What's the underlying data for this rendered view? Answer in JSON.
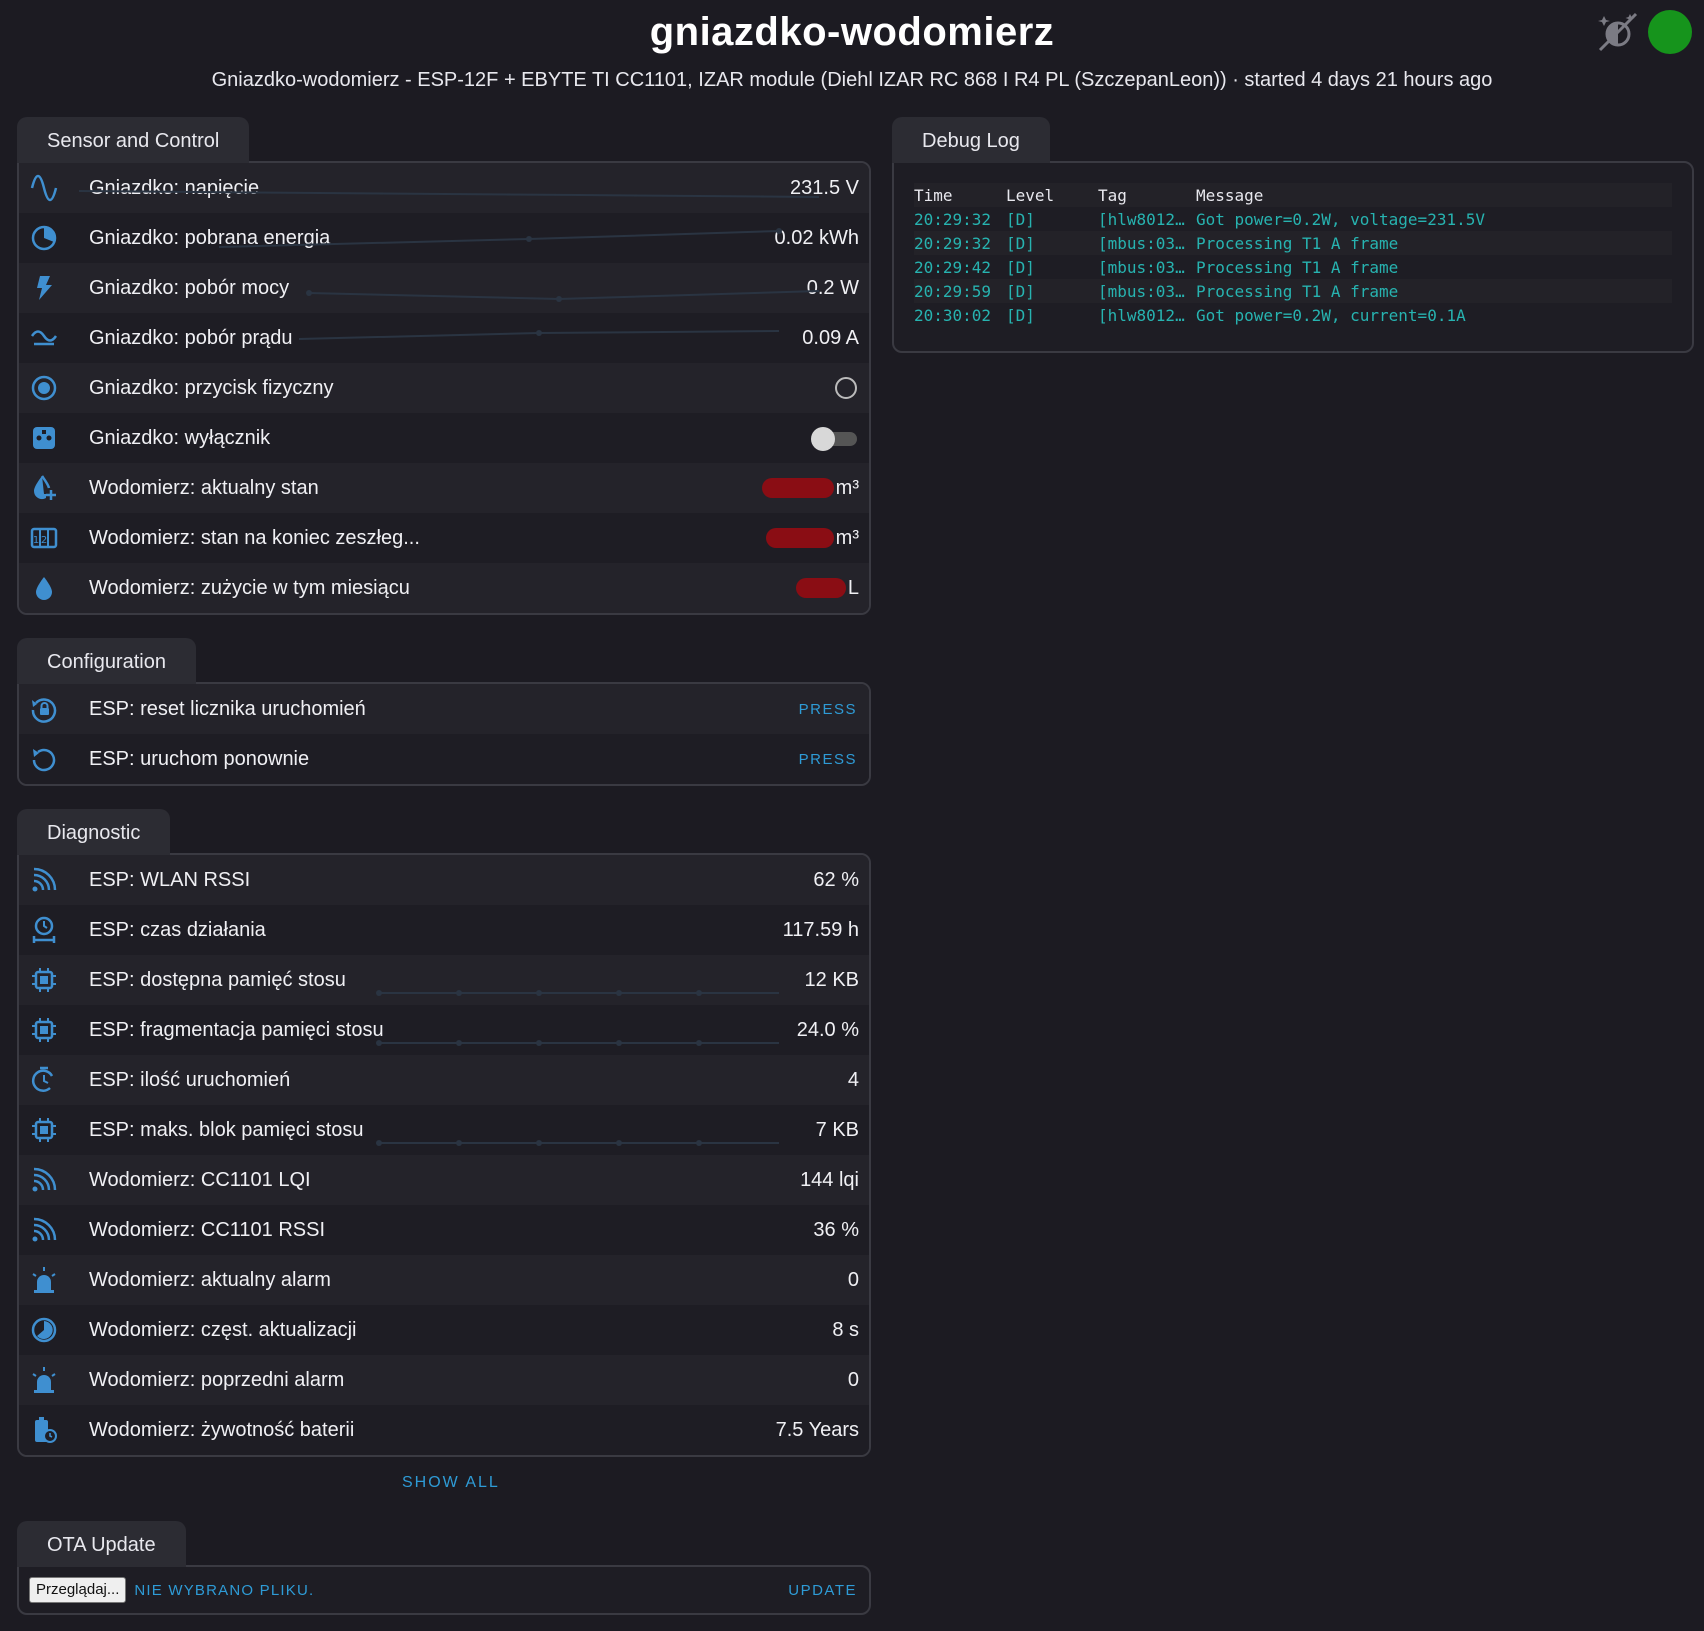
{
  "header": {
    "title": "gniazdko-wodomierz",
    "subtitle": "Gniazdko-wodomierz - ESP-12F + EBYTE TI CC1101, IZAR module (Diehl IZAR RC 868 I R4 PL (SzczepanLeon)) · started 4 days 21 hours ago",
    "status_color": "#16941c"
  },
  "sensor": {
    "tab": "Sensor and Control",
    "rows": [
      {
        "icon": "sine-wave-icon",
        "label": "Gniazdko: napięcie",
        "value": "231.5 V"
      },
      {
        "icon": "gauge-icon",
        "label": "Gniazdko: pobrana energia",
        "value": "0.02 kWh"
      },
      {
        "icon": "flash-icon",
        "label": "Gniazdko: pobór mocy",
        "value": "0.2 W"
      },
      {
        "icon": "current-ac-icon",
        "label": "Gniazdko: pobór prądu",
        "value": "0.09 A"
      },
      {
        "icon": "radiobox-icon",
        "label": "Gniazdko: przycisk fizyczny",
        "value": ""
      },
      {
        "icon": "power-socket-icon",
        "label": "Gniazdko: wyłącznik",
        "value": ""
      },
      {
        "icon": "water-plus-icon",
        "label": "Wodomierz: aktualny stan",
        "value": "m³"
      },
      {
        "icon": "counter-icon",
        "label": "Wodomierz: stan na koniec zeszłeg...",
        "value": "m³"
      },
      {
        "icon": "water-drop-icon",
        "label": "Wodomierz: zużycie w tym miesiącu",
        "value": "L"
      }
    ]
  },
  "config": {
    "tab": "Configuration",
    "rows": [
      {
        "icon": "restart-lock-icon",
        "label": "ESP: reset licznika uruchomień",
        "action": "PRESS"
      },
      {
        "icon": "restart-icon",
        "label": "ESP: uruchom ponownie",
        "action": "PRESS"
      }
    ]
  },
  "diag": {
    "tab": "Diagnostic",
    "rows": [
      {
        "icon": "wifi-signal-icon",
        "label": "ESP: WLAN RSSI",
        "value": "62 %"
      },
      {
        "icon": "timer-icon",
        "label": "ESP: czas działania",
        "value": "117.59 h"
      },
      {
        "icon": "chip-icon",
        "label": "ESP: dostępna pamięć stosu",
        "value": "12 KB"
      },
      {
        "icon": "chip-icon",
        "label": "ESP: fragmentacja pamięci stosu",
        "value": "24.0 %"
      },
      {
        "icon": "timer-refresh-icon",
        "label": "ESP: ilość uruchomień",
        "value": "4"
      },
      {
        "icon": "chip-icon",
        "label": "ESP: maks. blok pamięci stosu",
        "value": "7 KB"
      },
      {
        "icon": "wifi-signal-icon",
        "label": "Wodomierz: CC1101 LQI",
        "value": "144 lqi"
      },
      {
        "icon": "wifi-signal-icon",
        "label": "Wodomierz: CC1101 RSSI",
        "value": "36 %"
      },
      {
        "icon": "alarm-light-icon",
        "label": "Wodomierz: aktualny alarm",
        "value": "0"
      },
      {
        "icon": "clock-icon",
        "label": "Wodomierz: częst. aktualizacji",
        "value": "8 s"
      },
      {
        "icon": "alarm-light-icon",
        "label": "Wodomierz: poprzedni alarm",
        "value": "0"
      },
      {
        "icon": "battery-clock-icon",
        "label": "Wodomierz: żywotność baterii",
        "value": "7.5 Years"
      }
    ],
    "show_all": "SHOW ALL"
  },
  "ota": {
    "tab": "OTA Update",
    "browse": "Przeglądaj...",
    "no_file": "NIE WYBRANO PLIKU.",
    "update": "UPDATE"
  },
  "debug": {
    "tab": "Debug Log",
    "headers": [
      "Time",
      "Level",
      "Tag",
      "Message"
    ],
    "rows": [
      {
        "time": "20:29:32",
        "level": "[D]",
        "tag": "[hlw8012…",
        "message": "Got power=0.2W, voltage=231.5V"
      },
      {
        "time": "20:29:32",
        "level": "[D]",
        "tag": "[mbus:03…",
        "message": "Processing T1 A frame"
      },
      {
        "time": "20:29:42",
        "level": "[D]",
        "tag": "[mbus:03…",
        "message": "Processing T1 A frame"
      },
      {
        "time": "20:29:59",
        "level": "[D]",
        "tag": "[mbus:03…",
        "message": "Processing T1 A frame"
      },
      {
        "time": "20:30:02",
        "level": "[D]",
        "tag": "[hlw8012…",
        "message": "Got power=0.2W, current=0.1A"
      }
    ]
  },
  "colors": {
    "background": "#1c1b22",
    "accent": "#2e9bd6",
    "log_text": "#27b3b0",
    "icon": "#3f8fd0",
    "redaction": "#8a0d14"
  }
}
